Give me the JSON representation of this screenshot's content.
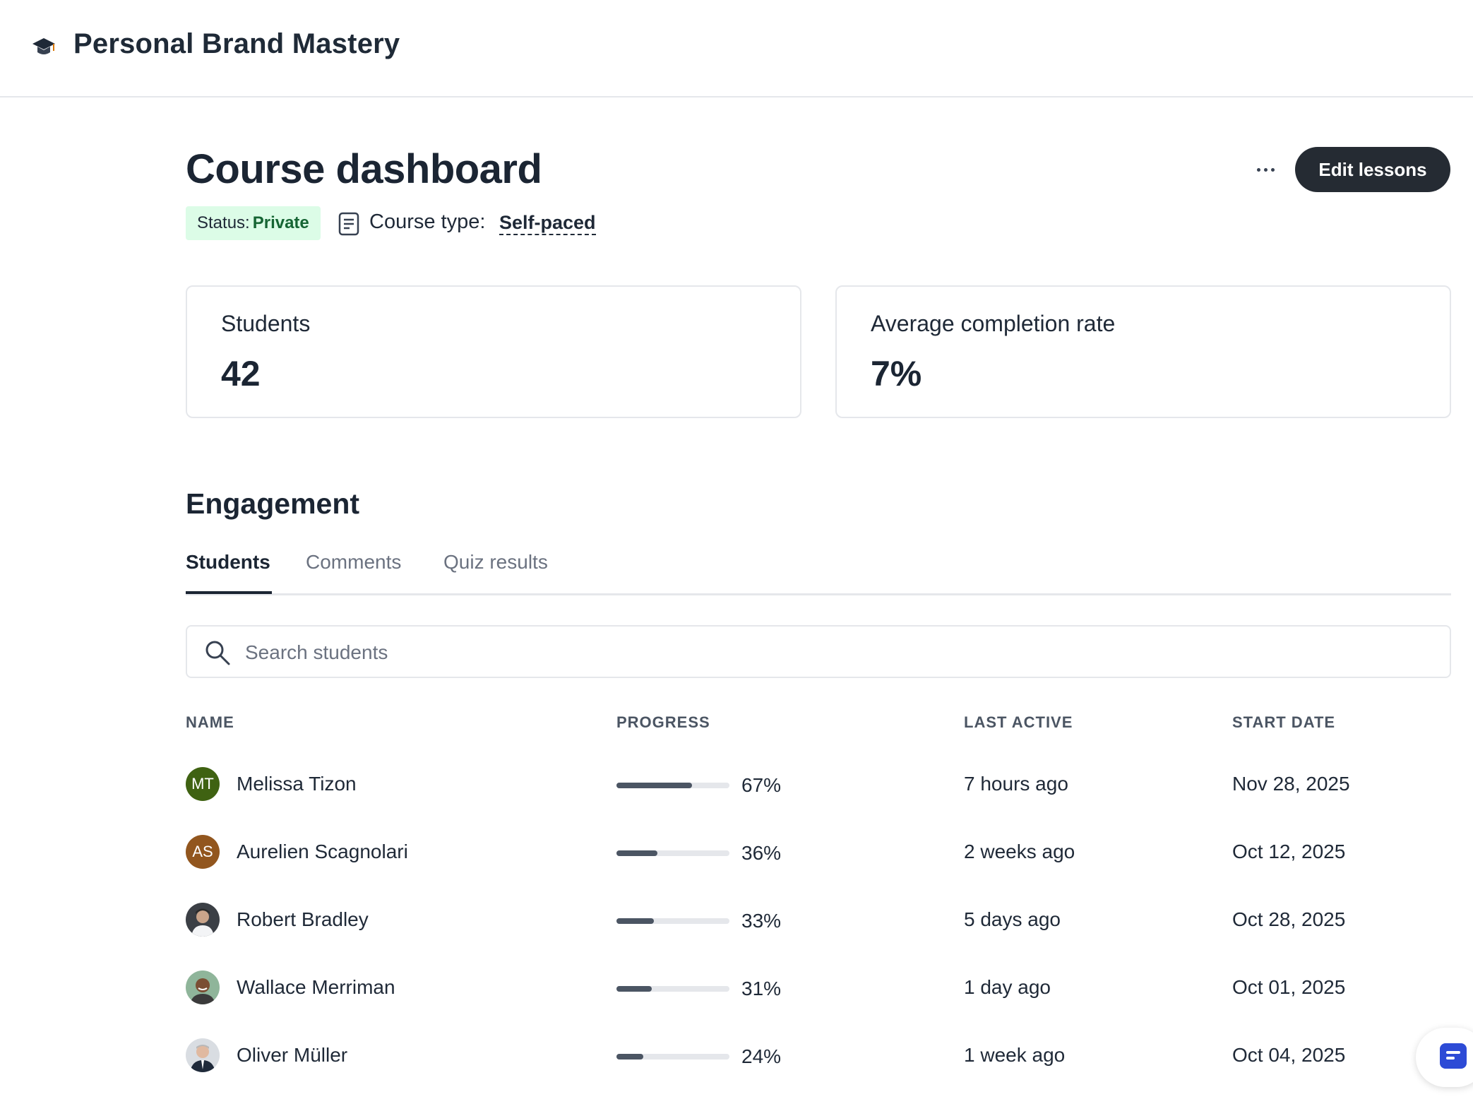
{
  "app": {
    "title": "Personal Brand Mastery",
    "icon": "graduation-cap-icon"
  },
  "header": {
    "title": "Course dashboard",
    "more_icon": "ellipsis-icon",
    "edit_label": "Edit lessons",
    "status_prefix": "Status:",
    "status_value": "Private",
    "course_type_icon": "document-icon",
    "course_type_label": "Course type:",
    "course_type_value": "Self-paced"
  },
  "stats": [
    {
      "label": "Students",
      "value": "42"
    },
    {
      "label": "Average completion rate",
      "value": "7%"
    }
  ],
  "engagement": {
    "title": "Engagement",
    "tabs": [
      {
        "label": "Students",
        "active": true
      },
      {
        "label": "Comments",
        "active": false
      },
      {
        "label": "Quiz results",
        "active": false
      }
    ],
    "search": {
      "placeholder": "Search students",
      "icon": "search-icon"
    },
    "columns": [
      "NAME",
      "PROGRESS",
      "LAST ACTIVE",
      "START DATE"
    ],
    "students": [
      {
        "initials": "MT",
        "avatar_color": "#3f6212",
        "name": "Melissa Tizon",
        "progress": 67,
        "progress_label": "67%",
        "last_active": "7 hours ago",
        "start_date": "Nov 28, 2025"
      },
      {
        "initials": "AS",
        "avatar_color": "#92561e",
        "name": "Aurelien Scagnolari",
        "progress": 36,
        "progress_label": "36%",
        "last_active": "2 weeks ago",
        "start_date": "Oct 12, 2025"
      },
      {
        "initials": "",
        "avatar": "photo",
        "name": "Robert Bradley",
        "progress": 33,
        "progress_label": "33%",
        "last_active": "5 days ago",
        "start_date": "Oct 28, 2025"
      },
      {
        "initials": "",
        "avatar": "photo",
        "name": "Wallace Merriman",
        "progress": 31,
        "progress_label": "31%",
        "last_active": "1 day ago",
        "start_date": "Oct 01, 2025"
      },
      {
        "initials": "",
        "avatar": "photo",
        "name": "Oliver Müller",
        "progress": 24,
        "progress_label": "24%",
        "last_active": "1 week ago",
        "start_date": "Oct 04, 2025"
      }
    ]
  },
  "chat_widget": {
    "icon": "chat-icon",
    "color": "#2d4bd6"
  }
}
